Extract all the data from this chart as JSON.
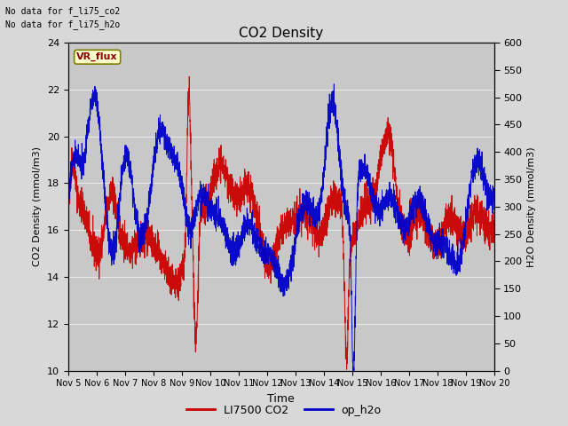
{
  "title": "CO2 Density",
  "xlabel": "Time",
  "ylabel_left": "CO2 Density (mmol/m3)",
  "ylabel_right": "H2O Density (mmol/m3)",
  "ylim_left": [
    10,
    24
  ],
  "ylim_right": [
    0,
    600
  ],
  "yticks_left": [
    10,
    12,
    14,
    16,
    18,
    20,
    22,
    24
  ],
  "yticks_right": [
    0,
    50,
    100,
    150,
    200,
    250,
    300,
    350,
    400,
    450,
    500,
    550,
    600
  ],
  "xticklabels": [
    "Nov 5",
    "Nov 6",
    "Nov 7",
    "Nov 8",
    "Nov 9",
    "Nov 10",
    "Nov 11",
    "Nov 12",
    "Nov 13",
    "Nov 14",
    "Nov 15",
    "Nov 16",
    "Nov 17",
    "Nov 18",
    "Nov 19",
    "Nov 20"
  ],
  "color_co2": "#cc0000",
  "color_h2o": "#0000cc",
  "legend_labels": [
    "LI7500 CO2",
    "op_h2o"
  ],
  "no_data_text1": "No data for f_li75_co2",
  "no_data_text2": "No data for f_li75_h2o",
  "vr_flux_label": "VR_flux",
  "fig_bg_color": "#d8d8d8",
  "plot_bg_color": "#c8c8c8",
  "grid_color": "#e8e8e8"
}
